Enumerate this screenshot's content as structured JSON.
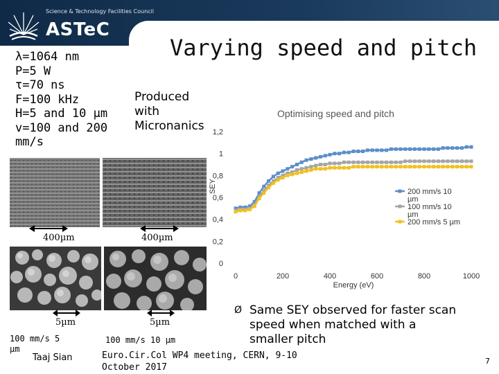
{
  "header": {
    "council_name": "Science & Technology Facilities Council",
    "logo_text": "ASTeC"
  },
  "slide": {
    "title": "Varying speed and pitch",
    "parameters": [
      "λ=1064 nm",
      "P=5 W",
      "τ=70 ns",
      "F=100 kHz",
      "H=5 and 10 µm",
      "v=100 and 200",
      "mm/s"
    ],
    "produced_with": [
      "Produced",
      "with",
      "Micronanics"
    ]
  },
  "images": {
    "top_left_scale": "400µm",
    "top_right_scale": "400µm",
    "bottom_left_scale": "5µm",
    "bottom_right_scale": "5µm",
    "caption_left": [
      "100 mm/s 5",
      "µm"
    ],
    "caption_right": "100 mm/s 10 µm"
  },
  "conclusion": {
    "marker": "Ø",
    "text": "Same SEY observed for faster scan speed when matched with a smaller pitch"
  },
  "footer": {
    "author": "Taaj Sian",
    "meeting": "Euro.Cir.Col WP4 meeting, CERN, 9-10 October 2017",
    "page": "7"
  },
  "colors": {
    "series_1": "#5b8fc9",
    "series_2": "#a5a5a5",
    "series_3": "#f2c01e"
  },
  "chart_data": {
    "type": "line",
    "title": "Optimising speed and pitch",
    "xlabel": "Energy (eV)",
    "ylabel": "SEY",
    "xlim": [
      0,
      1000
    ],
    "ylim": [
      0,
      1.2
    ],
    "xticks": [
      0,
      200,
      400,
      600,
      800,
      1000
    ],
    "xtick_labels": [
      "0",
      "200",
      "400",
      "600",
      "800",
      "1000"
    ],
    "yticks": [
      0,
      0.2,
      0.4,
      0.6,
      0.8,
      1,
      1.2
    ],
    "ytick_labels": [
      "0",
      "0,2",
      "0,4",
      "0,6",
      "0,8",
      "1",
      "1,2"
    ],
    "legend_position": "right",
    "series": [
      {
        "name": "200 mm/s 10 µm",
        "legend_lines": [
          "200 mm/s 10",
          "µm"
        ],
        "x": [
          0,
          20,
          40,
          60,
          80,
          100,
          120,
          140,
          160,
          180,
          200,
          220,
          240,
          260,
          280,
          300,
          320,
          340,
          360,
          380,
          400,
          420,
          440,
          460,
          480,
          500,
          520,
          540,
          560,
          580,
          600,
          620,
          640,
          660,
          680,
          700,
          720,
          740,
          760,
          780,
          800,
          820,
          840,
          860,
          880,
          900,
          920,
          940,
          960,
          980,
          1000
        ],
        "values": [
          0.5,
          0.51,
          0.51,
          0.52,
          0.56,
          0.64,
          0.7,
          0.75,
          0.79,
          0.82,
          0.84,
          0.86,
          0.88,
          0.9,
          0.92,
          0.94,
          0.95,
          0.96,
          0.97,
          0.98,
          0.99,
          1.0,
          1.0,
          1.01,
          1.01,
          1.02,
          1.02,
          1.02,
          1.03,
          1.03,
          1.03,
          1.03,
          1.03,
          1.04,
          1.04,
          1.04,
          1.04,
          1.04,
          1.04,
          1.04,
          1.04,
          1.04,
          1.04,
          1.04,
          1.05,
          1.05,
          1.05,
          1.05,
          1.05,
          1.06,
          1.06
        ]
      },
      {
        "name": "100 mm/s 10 µm",
        "legend_lines": [
          "100 mm/s 10",
          "µm"
        ],
        "x": [
          0,
          20,
          40,
          60,
          80,
          100,
          120,
          140,
          160,
          180,
          200,
          220,
          240,
          260,
          280,
          300,
          320,
          340,
          360,
          380,
          400,
          420,
          440,
          460,
          480,
          500,
          520,
          540,
          560,
          580,
          600,
          620,
          640,
          660,
          680,
          700,
          720,
          740,
          760,
          780,
          800,
          820,
          840,
          860,
          880,
          900,
          920,
          940,
          960,
          980,
          1000
        ],
        "values": [
          0.48,
          0.49,
          0.49,
          0.5,
          0.53,
          0.61,
          0.66,
          0.71,
          0.75,
          0.78,
          0.8,
          0.82,
          0.83,
          0.85,
          0.86,
          0.87,
          0.88,
          0.89,
          0.9,
          0.9,
          0.91,
          0.91,
          0.91,
          0.92,
          0.92,
          0.92,
          0.92,
          0.92,
          0.92,
          0.92,
          0.92,
          0.92,
          0.92,
          0.92,
          0.92,
          0.92,
          0.93,
          0.93,
          0.93,
          0.93,
          0.93,
          0.93,
          0.93,
          0.93,
          0.93,
          0.93,
          0.93,
          0.93,
          0.93,
          0.93,
          0.93
        ]
      },
      {
        "name": "200 mm/s 5 µm",
        "legend_lines": [
          "200 mm/s 5 µm"
        ],
        "x": [
          0,
          20,
          40,
          60,
          80,
          100,
          120,
          140,
          160,
          180,
          200,
          220,
          240,
          260,
          280,
          300,
          320,
          340,
          360,
          380,
          400,
          420,
          440,
          460,
          480,
          500,
          520,
          540,
          560,
          580,
          600,
          620,
          640,
          660,
          680,
          700,
          720,
          740,
          760,
          780,
          800,
          820,
          840,
          860,
          880,
          900,
          920,
          940,
          960,
          980,
          1000
        ],
        "values": [
          0.47,
          0.48,
          0.48,
          0.49,
          0.52,
          0.59,
          0.64,
          0.69,
          0.73,
          0.76,
          0.78,
          0.8,
          0.81,
          0.82,
          0.83,
          0.84,
          0.85,
          0.86,
          0.86,
          0.86,
          0.87,
          0.87,
          0.87,
          0.87,
          0.87,
          0.88,
          0.88,
          0.88,
          0.88,
          0.88,
          0.88,
          0.88,
          0.88,
          0.88,
          0.88,
          0.88,
          0.88,
          0.88,
          0.88,
          0.88,
          0.88,
          0.88,
          0.88,
          0.88,
          0.88,
          0.88,
          0.88,
          0.88,
          0.88,
          0.88,
          0.88
        ]
      }
    ]
  }
}
